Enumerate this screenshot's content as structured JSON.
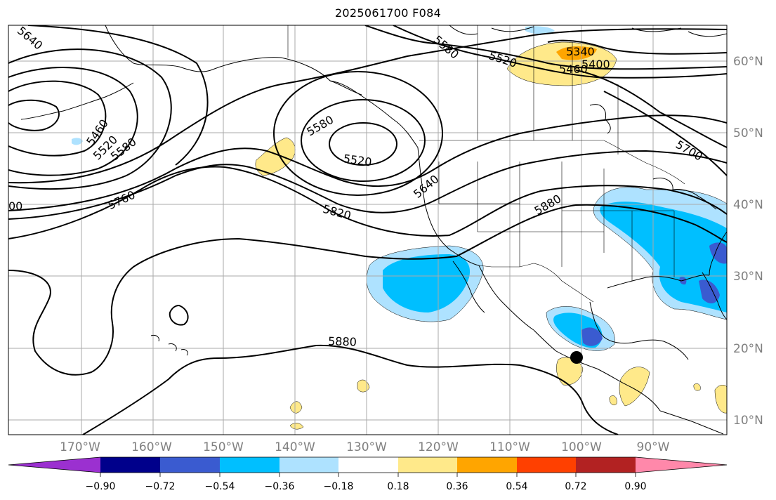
{
  "title": "2025061700 F084",
  "longitude_labels": [
    "170°W",
    "160°W",
    "150°W",
    "140°W",
    "130°W",
    "120°W",
    "110°W",
    "100°W",
    "90°W"
  ],
  "latitude_labels": [
    "60°N",
    "50°N",
    "40°N",
    "30°N",
    "20°N",
    "10°N"
  ],
  "contour_labels": [
    "5640",
    "5460",
    "5520",
    "5580",
    "5760",
    "00",
    "5580",
    "5520",
    "5640",
    "5820",
    "5880",
    "5580",
    "5520",
    "5340",
    "5400",
    "5460",
    "5700",
    "5880"
  ],
  "colorbar": {
    "tick_labels": [
      "−0.90",
      "−0.72",
      "−0.54",
      "−0.36",
      "−0.18",
      "0.18",
      "0.36",
      "0.54",
      "0.72",
      "0.90"
    ],
    "colors": [
      "#9b30d0",
      "#00008b",
      "#3a5bd0",
      "#00bfff",
      "#aee2ff",
      "#ffffff",
      "#ffe98a",
      "#ffa500",
      "#ff4000",
      "#b22222",
      "#ff88aa"
    ]
  },
  "anomaly_colors": {
    "neg_light": "#aee2ff",
    "neg_med": "#00bfff",
    "neg_strong": "#3a5bd0",
    "pos_light": "#ffe98a",
    "pos_med": "#ffa500"
  },
  "marker": "storm-center-dot"
}
